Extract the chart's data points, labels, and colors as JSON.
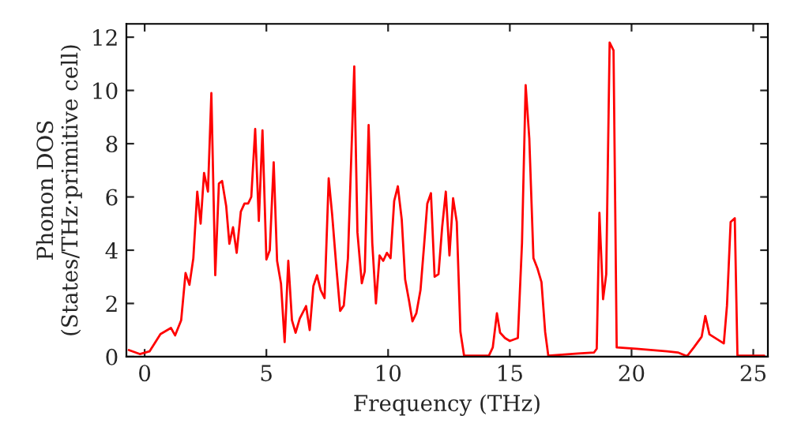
{
  "chart_data": {
    "type": "line",
    "xlabel": "Frequency (THz)",
    "ylabel": "Phonon DOS\n(States/THz·primitive cell)",
    "xlim": [
      -0.75,
      25.6
    ],
    "ylim": [
      0,
      12.5
    ],
    "xticks": [
      0,
      5,
      10,
      15,
      20,
      25
    ],
    "yticks": [
      0,
      2,
      4,
      6,
      8,
      10,
      12
    ],
    "grid": false,
    "legend": false,
    "series": [
      {
        "color": "#ff0000",
        "line_style": "solid",
        "x": [
          -0.65,
          -0.2,
          0.2,
          0.65,
          1.08,
          1.25,
          1.5,
          1.68,
          1.84,
          2.0,
          2.16,
          2.3,
          2.44,
          2.6,
          2.74,
          2.9,
          3.05,
          3.18,
          3.35,
          3.48,
          3.63,
          3.78,
          3.95,
          4.1,
          4.25,
          4.38,
          4.54,
          4.69,
          4.84,
          5.0,
          5.14,
          5.3,
          5.44,
          5.6,
          5.75,
          5.9,
          6.05,
          6.2,
          6.37,
          6.63,
          6.78,
          6.93,
          7.08,
          7.23,
          7.39,
          7.56,
          7.7,
          7.88,
          8.03,
          8.18,
          8.35,
          8.61,
          8.74,
          8.92,
          9.04,
          9.2,
          9.35,
          9.5,
          9.65,
          9.8,
          9.95,
          10.1,
          10.25,
          10.4,
          10.56,
          10.7,
          10.86,
          11.0,
          11.16,
          11.33,
          11.48,
          11.61,
          11.76,
          11.91,
          12.07,
          12.22,
          12.37,
          12.52,
          12.67,
          12.82,
          12.97,
          13.12,
          14.14,
          14.3,
          14.47,
          14.6,
          14.8,
          15.0,
          15.33,
          15.5,
          15.65,
          15.8,
          15.97,
          16.14,
          16.3,
          16.45,
          16.58,
          17.8,
          18.46,
          18.57,
          18.68,
          18.83,
          18.96,
          19.1,
          19.26,
          19.39,
          20.2,
          21.46,
          21.9,
          22.28,
          22.56,
          22.88,
          23.03,
          23.2,
          23.79,
          23.92,
          24.07,
          24.24,
          24.35,
          25.45
        ],
        "values": [
          0.25,
          0.1,
          0.2,
          0.85,
          1.08,
          0.8,
          1.37,
          3.14,
          2.7,
          3.7,
          6.2,
          5.0,
          6.9,
          6.2,
          9.9,
          3.06,
          6.5,
          6.6,
          5.65,
          4.24,
          4.86,
          3.9,
          5.45,
          5.75,
          5.75,
          6.0,
          8.55,
          5.1,
          8.5,
          3.65,
          4.0,
          7.3,
          3.6,
          2.75,
          0.55,
          3.6,
          1.37,
          0.9,
          1.43,
          1.9,
          1.0,
          2.65,
          3.06,
          2.5,
          2.2,
          6.7,
          5.35,
          3.3,
          1.72,
          1.92,
          3.7,
          10.9,
          4.67,
          2.76,
          3.2,
          8.7,
          4.27,
          2.0,
          3.8,
          3.6,
          3.9,
          3.7,
          5.85,
          6.4,
          5.15,
          2.9,
          2.1,
          1.33,
          1.63,
          2.5,
          4.2,
          5.75,
          6.14,
          3.0,
          3.1,
          4.86,
          6.2,
          3.8,
          5.95,
          5.06,
          0.94,
          0.04,
          0.04,
          0.35,
          1.63,
          0.9,
          0.7,
          0.59,
          0.7,
          4.27,
          10.2,
          8.2,
          3.7,
          3.3,
          2.8,
          0.94,
          0.04,
          0.12,
          0.16,
          0.3,
          5.4,
          2.16,
          3.1,
          11.8,
          11.5,
          0.35,
          0.3,
          0.2,
          0.16,
          0.02,
          0.35,
          0.75,
          1.53,
          0.84,
          0.5,
          1.92,
          5.06,
          5.2,
          0.04,
          0.04
        ]
      }
    ]
  }
}
